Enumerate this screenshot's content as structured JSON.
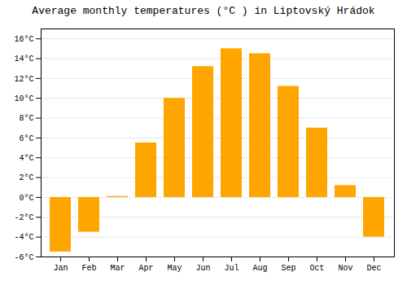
{
  "chart_data": {
    "type": "bar",
    "title": "Average monthly temperatures (°C ) in Liptovský Hrádok",
    "categories": [
      "Jan",
      "Feb",
      "Mar",
      "Apr",
      "May",
      "Jun",
      "Jul",
      "Aug",
      "Sep",
      "Oct",
      "Nov",
      "Dec"
    ],
    "values": [
      -5.5,
      -3.5,
      0.1,
      5.5,
      10.0,
      13.2,
      15.0,
      14.5,
      11.2,
      7.0,
      1.2,
      -4.0
    ],
    "color": "#FFA500",
    "ylim": [
      -6,
      17
    ],
    "yticks": [
      {
        "value": -6,
        "label": "-6°C"
      },
      {
        "value": -4,
        "label": "-4°C"
      },
      {
        "value": -2,
        "label": "-2°C"
      },
      {
        "value": 0,
        "label": "0°C"
      },
      {
        "value": 2,
        "label": "2°C"
      },
      {
        "value": 4,
        "label": "4°C"
      },
      {
        "value": 6,
        "label": "6°C"
      },
      {
        "value": 8,
        "label": "8°C"
      },
      {
        "value": 10,
        "label": "10°C"
      },
      {
        "value": 12,
        "label": "12°C"
      },
      {
        "value": 14,
        "label": "14°C"
      },
      {
        "value": 16,
        "label": "16°C"
      }
    ],
    "grid": true
  }
}
